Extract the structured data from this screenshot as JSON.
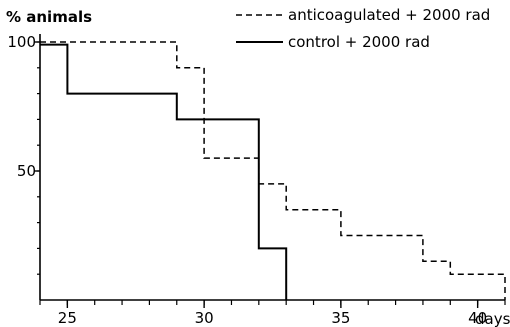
{
  "chart_data": {
    "type": "line",
    "step": true,
    "ylabel": "% animals",
    "xunit": "days",
    "xlim": [
      24,
      41
    ],
    "ylim": [
      0,
      100
    ],
    "xticks": [
      25,
      30,
      35,
      40
    ],
    "yticks": [
      50,
      100
    ],
    "grid": false,
    "legend_position": "top-right",
    "series": [
      {
        "name": "anticoagulated + 2000 rad",
        "style": "dashed",
        "color": "#000000",
        "points": [
          [
            24,
            100
          ],
          [
            29,
            100
          ],
          [
            29,
            90
          ],
          [
            30,
            90
          ],
          [
            30,
            55
          ],
          [
            32,
            55
          ],
          [
            32,
            45
          ],
          [
            33,
            45
          ],
          [
            33,
            35
          ],
          [
            35,
            35
          ],
          [
            35,
            25
          ],
          [
            38,
            25
          ],
          [
            38,
            15
          ],
          [
            39,
            15
          ],
          [
            39,
            10
          ],
          [
            41,
            10
          ],
          [
            41,
            0
          ]
        ]
      },
      {
        "name": "control + 2000 rad",
        "style": "solid",
        "color": "#000000",
        "points": [
          [
            24,
            99
          ],
          [
            25,
            99
          ],
          [
            25,
            80
          ],
          [
            29,
            80
          ],
          [
            29,
            70
          ],
          [
            32,
            70
          ],
          [
            32,
            20
          ],
          [
            33,
            20
          ],
          [
            33,
            0
          ]
        ]
      }
    ]
  }
}
